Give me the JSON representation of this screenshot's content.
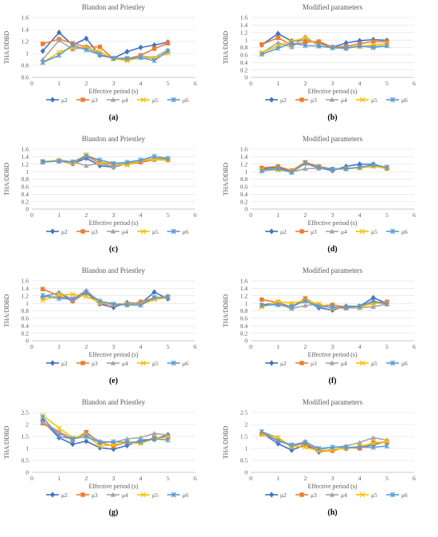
{
  "figure": {
    "series_names": [
      "μ2",
      "μ3",
      "μ4",
      "μ5",
      "μ6"
    ],
    "series_colors": [
      "#4472C4",
      "#ED7D31",
      "#A5A5A5",
      "#FFC000",
      "#5B9BD5"
    ],
    "series_markers": [
      "diamond",
      "square",
      "triangle",
      "cross",
      "star"
    ]
  },
  "chart_data": [
    {
      "panel_label": "(a)",
      "type": "line",
      "title": "Blandon and Priestley",
      "xlabel": "Effective period (s)",
      "ylabel": "THA/DDBD",
      "x": [
        0.4,
        1.0,
        1.5,
        2.0,
        2.5,
        3.0,
        3.5,
        4.0,
        4.5,
        5.0
      ],
      "xlim": [
        0,
        6
      ],
      "xticks": [
        0,
        1,
        2,
        3,
        4,
        5,
        6
      ],
      "ylim": [
        0.6,
        1.6
      ],
      "yticks": [
        0.6,
        0.8,
        1.0,
        1.2,
        1.4,
        1.6
      ],
      "ytick_labels": [
        "0.6",
        "0.8",
        "1",
        "1.2",
        "1.4",
        "1.6"
      ],
      "grid": "horizontal",
      "legend": "bottom",
      "series": [
        {
          "name": "μ2",
          "values": [
            1.04,
            1.35,
            1.14,
            1.25,
            0.97,
            0.92,
            1.03,
            1.1,
            1.14,
            1.19
          ]
        },
        {
          "name": "μ3",
          "values": [
            1.16,
            1.24,
            1.17,
            1.11,
            1.11,
            0.91,
            0.91,
            0.97,
            1.08,
            1.17
          ]
        },
        {
          "name": "μ4",
          "values": [
            0.9,
            1.22,
            1.07,
            1.1,
            0.99,
            0.91,
            0.89,
            0.96,
            0.93,
            1.06
          ]
        },
        {
          "name": "μ5",
          "values": [
            0.85,
            1.02,
            1.1,
            1.1,
            1.03,
            0.91,
            0.88,
            0.93,
            0.92,
            1.0
          ]
        },
        {
          "name": "μ6",
          "values": [
            0.85,
            0.97,
            1.14,
            1.06,
            0.98,
            0.92,
            0.92,
            0.93,
            0.88,
            1.04
          ]
        }
      ]
    },
    {
      "panel_label": "(b)",
      "type": "line",
      "title": "Modified parameters",
      "xlabel": "Effective period (s)",
      "ylabel": "THA/DDBD",
      "x": [
        0.4,
        1.0,
        1.5,
        2.0,
        2.5,
        3.0,
        3.5,
        4.0,
        4.5,
        5.0
      ],
      "xlim": [
        0,
        6
      ],
      "xticks": [
        0,
        1,
        2,
        3,
        4,
        5,
        6
      ],
      "ylim": [
        0.0,
        1.6
      ],
      "yticks": [
        0.0,
        0.2,
        0.4,
        0.6,
        0.8,
        1.0,
        1.2,
        1.4,
        1.6
      ],
      "ytick_labels": [
        "0",
        "0.2",
        "0.4",
        "0.6",
        "0.8",
        "1",
        "1.2",
        "1.4",
        "1.6"
      ],
      "grid": "horizontal",
      "legend": "bottom",
      "series": [
        {
          "name": "μ2",
          "values": [
            0.87,
            1.17,
            0.97,
            1.0,
            0.92,
            0.81,
            0.92,
            0.98,
            1.01,
            0.99
          ]
        },
        {
          "name": "μ3",
          "values": [
            0.88,
            1.06,
            0.86,
            0.94,
            0.96,
            0.81,
            0.83,
            0.9,
            0.96,
            0.95
          ]
        },
        {
          "name": "μ4",
          "values": [
            0.65,
            0.93,
            0.81,
            1.09,
            0.84,
            0.8,
            0.77,
            0.84,
            0.82,
            0.85
          ]
        },
        {
          "name": "μ5",
          "values": [
            0.66,
            0.84,
            0.97,
            1.05,
            0.85,
            0.8,
            0.79,
            0.82,
            0.87,
            0.9
          ]
        },
        {
          "name": "μ6",
          "values": [
            0.62,
            0.78,
            0.92,
            0.85,
            0.84,
            0.79,
            0.79,
            0.84,
            0.8,
            0.85
          ]
        }
      ]
    },
    {
      "panel_label": "(c)",
      "type": "line",
      "title": "Blandon and Priestley",
      "xlabel": "Effective period (s)",
      "ylabel": "THA/DDBD",
      "x": [
        0.4,
        1.0,
        1.5,
        2.0,
        2.5,
        3.0,
        3.5,
        4.0,
        4.5,
        5.0
      ],
      "xlim": [
        0,
        6
      ],
      "xticks": [
        0,
        1,
        2,
        3,
        4,
        5,
        6
      ],
      "ylim": [
        0.0,
        1.6
      ],
      "yticks": [
        0.0,
        0.2,
        0.4,
        0.6,
        0.8,
        1.0,
        1.2,
        1.4,
        1.6
      ],
      "ytick_labels": [
        "0",
        "0.2",
        "0.4",
        "0.6",
        "0.8",
        "1",
        "1.2",
        "1.4",
        "1.6"
      ],
      "grid": "horizontal",
      "legend": "bottom",
      "series": [
        {
          "name": "μ2",
          "values": [
            1.26,
            1.29,
            1.21,
            1.36,
            1.16,
            1.12,
            1.22,
            1.27,
            1.35,
            1.34
          ]
        },
        {
          "name": "μ3",
          "values": [
            1.27,
            1.29,
            1.22,
            1.42,
            1.22,
            1.2,
            1.2,
            1.25,
            1.32,
            1.31
          ]
        },
        {
          "name": "μ4",
          "values": [
            1.25,
            1.31,
            1.26,
            1.16,
            1.22,
            1.13,
            1.24,
            1.29,
            1.35,
            1.36
          ]
        },
        {
          "name": "μ5",
          "values": [
            1.26,
            1.3,
            1.22,
            1.46,
            1.25,
            1.21,
            1.18,
            1.3,
            1.33,
            1.32
          ]
        },
        {
          "name": "μ6",
          "values": [
            1.26,
            1.28,
            1.26,
            1.42,
            1.31,
            1.22,
            1.25,
            1.31,
            1.41,
            1.35
          ]
        }
      ]
    },
    {
      "panel_label": "(d)",
      "type": "line",
      "title": "Modified parameters",
      "xlabel": "Effective period (s)",
      "ylabel": "THA/DDBD",
      "x": [
        0.4,
        1.0,
        1.5,
        2.0,
        2.5,
        3.0,
        3.5,
        4.0,
        4.5,
        5.0
      ],
      "xlim": [
        0,
        6
      ],
      "xticks": [
        0,
        1,
        2,
        3,
        4,
        5,
        6
      ],
      "ylim": [
        0.0,
        1.6
      ],
      "yticks": [
        0.0,
        0.2,
        0.4,
        0.6,
        0.8,
        1.0,
        1.2,
        1.4,
        1.6
      ],
      "ytick_labels": [
        "0",
        "0.2",
        "0.4",
        "0.6",
        "0.8",
        "1",
        "1.2",
        "1.4",
        "1.6"
      ],
      "grid": "horizontal",
      "legend": "bottom",
      "series": [
        {
          "name": "μ2",
          "values": [
            1.07,
            1.12,
            0.99,
            1.22,
            1.1,
            1.03,
            1.14,
            1.2,
            1.2,
            1.1
          ]
        },
        {
          "name": "μ3",
          "values": [
            1.1,
            1.14,
            1.03,
            1.25,
            1.14,
            1.07,
            1.08,
            1.1,
            1.16,
            1.08
          ]
        },
        {
          "name": "μ4",
          "values": [
            1.03,
            1.08,
            0.99,
            1.08,
            1.09,
            1.07,
            1.09,
            1.1,
            1.15,
            1.12
          ]
        },
        {
          "name": "μ5",
          "values": [
            1.05,
            1.04,
            1.0,
            1.22,
            1.12,
            1.06,
            1.09,
            1.1,
            1.14,
            1.1
          ]
        },
        {
          "name": "μ6",
          "values": [
            1.02,
            1.08,
            0.98,
            1.23,
            1.11,
            1.06,
            1.08,
            1.12,
            1.18,
            1.12
          ]
        }
      ]
    },
    {
      "panel_label": "(e)",
      "type": "line",
      "title": "Blandon and Priestley",
      "xlabel": "Effective period (s)",
      "ylabel": "THA/DDBD",
      "x": [
        0.4,
        1.0,
        1.5,
        2.0,
        2.5,
        3.0,
        3.5,
        4.0,
        4.5,
        5.0
      ],
      "xlim": [
        0,
        6
      ],
      "xticks": [
        0,
        1,
        2,
        3,
        4,
        5,
        6
      ],
      "ylim": [
        0.0,
        1.6
      ],
      "yticks": [
        0.0,
        0.2,
        0.4,
        0.6,
        0.8,
        1.0,
        1.2,
        1.4,
        1.6
      ],
      "ytick_labels": [
        "0",
        "0.2",
        "0.4",
        "0.6",
        "0.8",
        "1",
        "1.2",
        "1.4",
        "1.6"
      ],
      "grid": "horizontal",
      "legend": "bottom",
      "series": [
        {
          "name": "μ2",
          "values": [
            1.18,
            1.28,
            1.06,
            1.28,
            0.98,
            0.89,
            1.02,
            0.99,
            1.3,
            1.12
          ]
        },
        {
          "name": "μ3",
          "values": [
            1.38,
            1.2,
            1.06,
            1.3,
            1.0,
            0.96,
            0.96,
            1.04,
            1.14,
            1.18
          ]
        },
        {
          "name": "μ4",
          "values": [
            1.14,
            1.3,
            1.1,
            1.35,
            1.02,
            0.97,
            1.0,
            1.0,
            1.13,
            1.2
          ]
        },
        {
          "name": "μ5",
          "values": [
            1.08,
            1.22,
            1.24,
            1.18,
            1.03,
            0.97,
            0.98,
            0.96,
            1.1,
            1.15
          ]
        },
        {
          "name": "μ6",
          "values": [
            1.21,
            1.13,
            1.12,
            1.3,
            1.06,
            0.98,
            0.96,
            0.95,
            1.16,
            1.16
          ]
        }
      ]
    },
    {
      "panel_label": "(f)",
      "type": "line",
      "title": "Modified parameters",
      "xlabel": "Effective period (s)",
      "ylabel": "THA/DDBD",
      "x": [
        0.4,
        1.0,
        1.5,
        2.0,
        2.5,
        3.0,
        3.5,
        4.0,
        4.5,
        5.0
      ],
      "xlim": [
        0,
        6
      ],
      "xticks": [
        0,
        1,
        2,
        3,
        4,
        5,
        6
      ],
      "ylim": [
        0.0,
        1.6
      ],
      "yticks": [
        0.0,
        0.2,
        0.4,
        0.6,
        0.8,
        1.0,
        1.2,
        1.4,
        1.6
      ],
      "ytick_labels": [
        "0",
        "0.2",
        "0.4",
        "0.6",
        "0.8",
        "1",
        "1.2",
        "1.4",
        "1.6"
      ],
      "grid": "horizontal",
      "legend": "bottom",
      "series": [
        {
          "name": "μ2",
          "values": [
            0.95,
            1.02,
            0.9,
            1.08,
            0.88,
            0.82,
            0.92,
            0.92,
            1.15,
            1.0
          ]
        },
        {
          "name": "μ3",
          "values": [
            1.1,
            1.02,
            0.9,
            1.13,
            0.93,
            0.96,
            0.9,
            0.91,
            1.02,
            1.04
          ]
        },
        {
          "name": "μ4",
          "values": [
            0.93,
            0.98,
            0.86,
            0.94,
            0.98,
            0.87,
            0.87,
            0.88,
            0.91,
            0.98
          ]
        },
        {
          "name": "μ5",
          "values": [
            0.9,
            1.05,
            1.0,
            1.08,
            0.98,
            0.87,
            0.89,
            0.9,
            1.0,
            1.0
          ]
        },
        {
          "name": "μ6",
          "values": [
            0.95,
            0.96,
            0.92,
            1.06,
            0.91,
            0.9,
            0.89,
            0.92,
            1.06,
            0.98
          ]
        }
      ]
    },
    {
      "panel_label": "(g)",
      "type": "line",
      "title": "Blandon and Priestley",
      "xlabel": "Effective period (s)",
      "ylabel": "THA/DDBD",
      "x": [
        0.4,
        1.0,
        1.5,
        2.0,
        2.5,
        3.0,
        3.5,
        4.0,
        4.5,
        5.0
      ],
      "xlim": [
        0,
        6
      ],
      "xticks": [
        0,
        1,
        2,
        3,
        4,
        5,
        6
      ],
      "ylim": [
        0.0,
        2.5
      ],
      "yticks": [
        0.0,
        0.5,
        1.0,
        1.5,
        2.0,
        2.5
      ],
      "ytick_labels": [
        "0",
        "0.5",
        "1",
        "1.5",
        "2",
        "2.5"
      ],
      "grid": "horizontal",
      "legend": "bottom",
      "series": [
        {
          "name": "μ2",
          "values": [
            2.15,
            1.45,
            1.18,
            1.3,
            1.03,
            0.97,
            1.12,
            1.35,
            1.38,
            1.57
          ]
        },
        {
          "name": "μ3",
          "values": [
            2.05,
            1.65,
            1.35,
            1.68,
            1.25,
            1.1,
            1.25,
            1.25,
            1.45,
            1.45
          ]
        },
        {
          "name": "μ4",
          "values": [
            2.1,
            1.7,
            1.4,
            1.6,
            1.3,
            1.25,
            1.4,
            1.45,
            1.63,
            1.55
          ]
        },
        {
          "name": "μ5",
          "values": [
            2.38,
            1.85,
            1.45,
            1.55,
            1.1,
            1.15,
            1.25,
            1.2,
            1.42,
            1.45
          ]
        },
        {
          "name": "μ6",
          "values": [
            2.3,
            1.5,
            1.4,
            1.5,
            1.25,
            1.28,
            1.25,
            1.28,
            1.4,
            1.35
          ]
        }
      ]
    },
    {
      "panel_label": "(h)",
      "type": "line",
      "title": "Modified parameters",
      "xlabel": "Effective period (s)",
      "ylabel": "THA/DDBD",
      "x": [
        0.4,
        1.0,
        1.5,
        2.0,
        2.5,
        3.0,
        3.5,
        4.0,
        4.5,
        5.0
      ],
      "xlim": [
        0,
        6
      ],
      "xticks": [
        0,
        1,
        2,
        3,
        4,
        5,
        6
      ],
      "ylim": [
        0.0,
        2.5
      ],
      "yticks": [
        0.0,
        0.5,
        1.0,
        1.5,
        2.0,
        2.5
      ],
      "ytick_labels": [
        "0",
        "0.5",
        "1",
        "1.5",
        "2",
        "2.5"
      ],
      "grid": "horizontal",
      "legend": "bottom",
      "series": [
        {
          "name": "μ2",
          "values": [
            1.65,
            1.2,
            0.93,
            1.15,
            0.85,
            0.95,
            1.0,
            1.05,
            1.15,
            1.3
          ]
        },
        {
          "name": "μ3",
          "values": [
            1.6,
            1.35,
            1.1,
            1.2,
            0.9,
            0.9,
            1.05,
            1.0,
            1.25,
            1.25
          ]
        },
        {
          "name": "μ4",
          "values": [
            1.7,
            1.45,
            1.05,
            1.3,
            0.95,
            1.05,
            1.1,
            1.25,
            1.45,
            1.35
          ]
        },
        {
          "name": "μ5",
          "values": [
            1.6,
            1.45,
            1.1,
            1.05,
            0.9,
            0.95,
            1.0,
            1.1,
            1.2,
            1.3
          ]
        },
        {
          "name": "μ6",
          "values": [
            1.7,
            1.3,
            1.15,
            1.25,
            1.0,
            1.05,
            1.05,
            1.05,
            1.05,
            1.1
          ]
        }
      ]
    }
  ]
}
